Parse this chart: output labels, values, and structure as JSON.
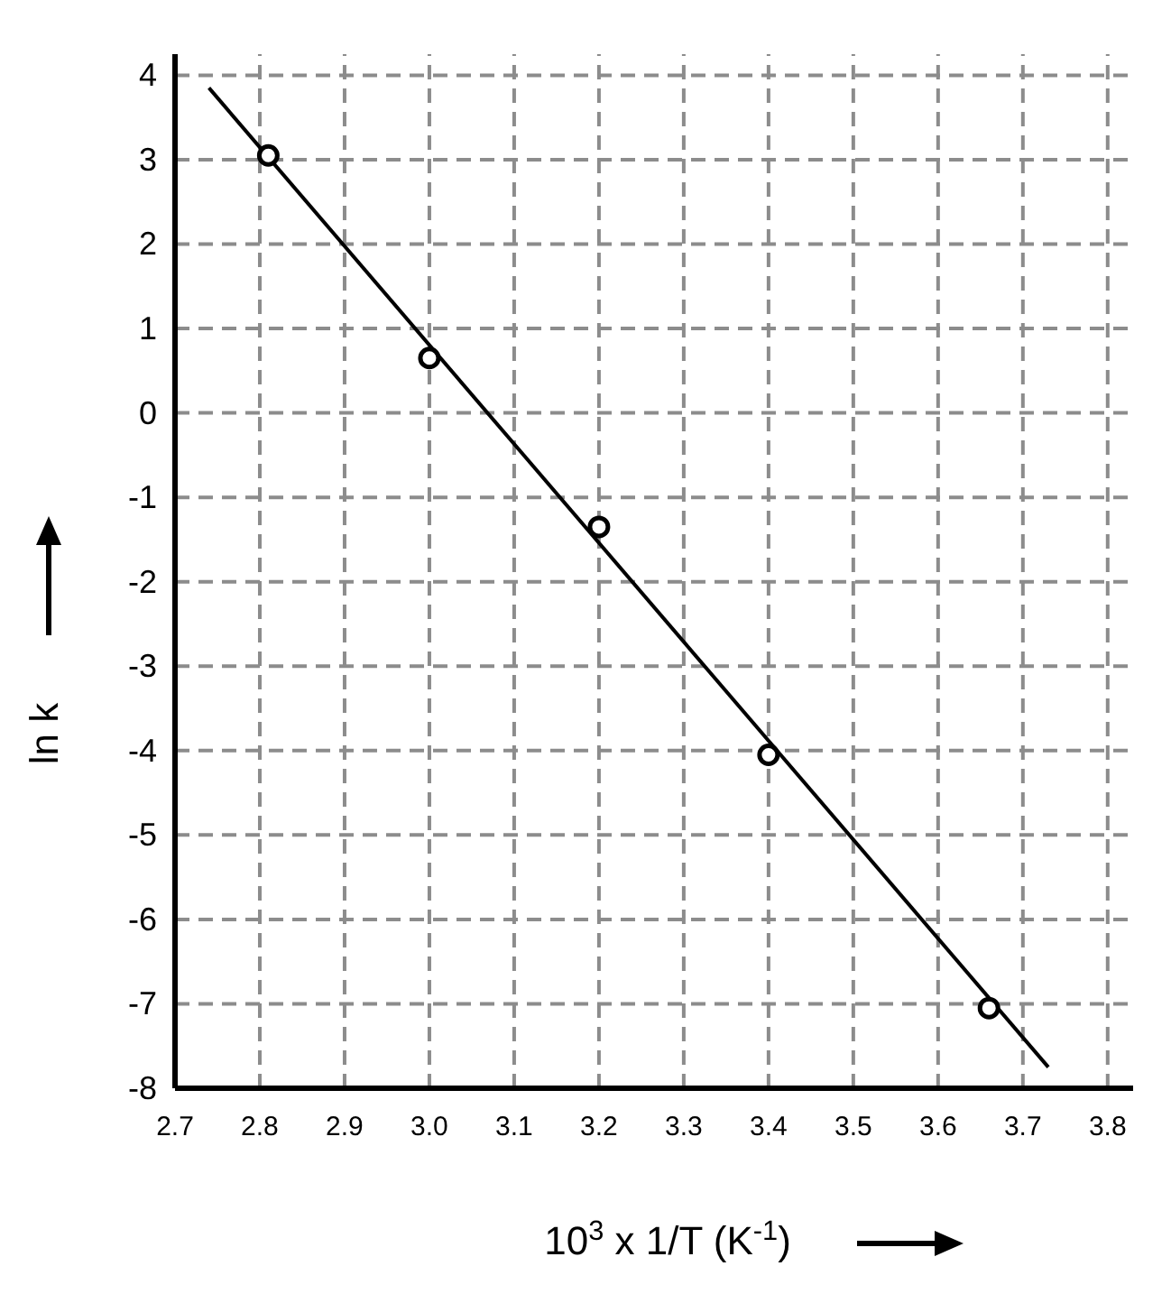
{
  "chart_data": {
    "type": "scatter",
    "xlabel": "10$^{3}$ x 1/T (K$^{-1}$)",
    "ylabel": "ln k",
    "xlim": [
      2.7,
      3.83
    ],
    "ylim": [
      -8,
      4.25
    ],
    "xticks": [
      {
        "value": 2.7,
        "label": "2.7"
      },
      {
        "value": 2.8,
        "label": "2.8"
      },
      {
        "value": 2.9,
        "label": "2.9"
      },
      {
        "value": 3.0,
        "label": "3.0"
      },
      {
        "value": 3.1,
        "label": "3.1"
      },
      {
        "value": 3.2,
        "label": "3.2"
      },
      {
        "value": 3.3,
        "label": "3.3"
      },
      {
        "value": 3.4,
        "label": "3.4"
      },
      {
        "value": 3.5,
        "label": "3.5"
      },
      {
        "value": 3.6,
        "label": "3.6"
      },
      {
        "value": 3.7,
        "label": "3.7"
      },
      {
        "value": 3.8,
        "label": "3.8"
      }
    ],
    "yticks": [
      -8,
      -7,
      -6,
      -5,
      -4,
      -3,
      -2,
      -1,
      0,
      1,
      2,
      3,
      4
    ],
    "grid": true,
    "series": [
      {
        "type": "line",
        "color": "#000000",
        "x": [
          2.74,
          3.73
        ],
        "values": [
          3.85,
          -7.75
        ],
        "marker": "none",
        "line_style": "solid"
      },
      {
        "color": "#000000",
        "x": [
          2.81,
          3.0,
          3.2,
          3.4,
          3.66
        ],
        "values": [
          3.05,
          0.65,
          -1.35,
          -4.05,
          -7.05
        ],
        "marker": "circle"
      }
    ]
  }
}
